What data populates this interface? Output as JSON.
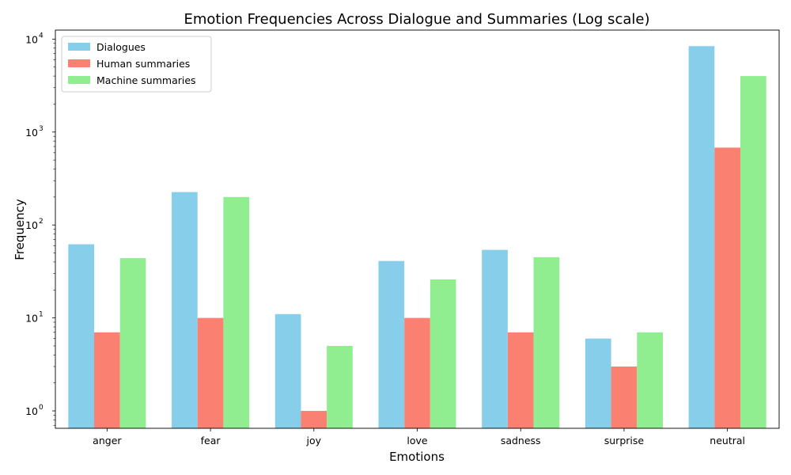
{
  "chart_data": {
    "type": "bar",
    "title": "Emotion Frequencies Across Dialogue and Summaries (Log scale)",
    "xlabel": "Emotions",
    "ylabel": "Frequency",
    "yscale": "log",
    "ylim": [
      0.65,
      12500
    ],
    "yticks": [
      {
        "value": 1,
        "base": "10",
        "exp": "0"
      },
      {
        "value": 10,
        "base": "10",
        "exp": "1"
      },
      {
        "value": 100,
        "base": "10",
        "exp": "2"
      },
      {
        "value": 1000,
        "base": "10",
        "exp": "3"
      },
      {
        "value": 10000,
        "base": "10",
        "exp": "4"
      }
    ],
    "categories": [
      "anger",
      "fear",
      "joy",
      "love",
      "sadness",
      "surprise",
      "neutral"
    ],
    "series": [
      {
        "name": "Dialogues",
        "color": "#87CEEB",
        "values": [
          62,
          226,
          11,
          41,
          54,
          6,
          8400
        ]
      },
      {
        "name": "Human summaries",
        "color": "#FA8072",
        "values": [
          7,
          10,
          1,
          10,
          7,
          3,
          680
        ]
      },
      {
        "name": "Machine summaries",
        "color": "#90EE90",
        "values": [
          44,
          200,
          5,
          26,
          45,
          7,
          4000
        ]
      }
    ],
    "grid": false,
    "legend_position": "top-left"
  }
}
